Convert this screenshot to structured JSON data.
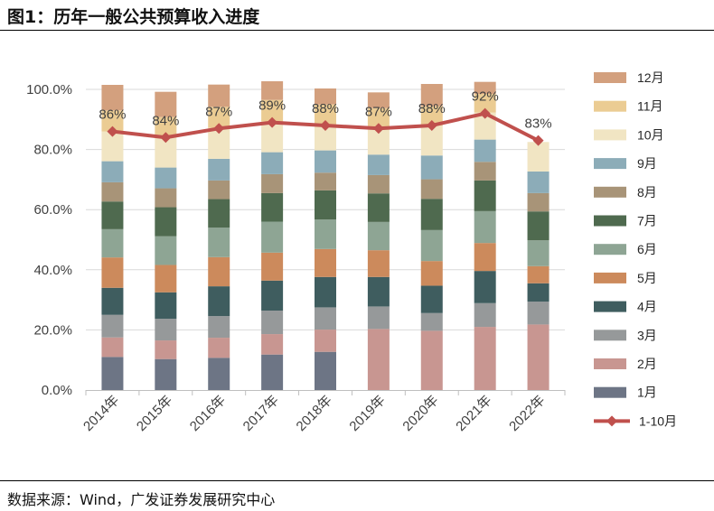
{
  "header": {
    "title": "图1：历年一般公共预算收入进度"
  },
  "footer": {
    "source": "数据来源：Wind，广发证券发展研究中心"
  },
  "chart_data": {
    "type": "bar",
    "stacked": true,
    "title": "历年一般公共预算收入进度",
    "categories": [
      "2014年",
      "2015年",
      "2016年",
      "2017年",
      "2018年",
      "2019年",
      "2020年",
      "2021年",
      "2022年"
    ],
    "ylim": [
      0,
      100
    ],
    "yticks": [
      0,
      20,
      40,
      60,
      80,
      100
    ],
    "ytick_labels": [
      "0.0%",
      "20.0%",
      "40.0%",
      "60.0%",
      "80.0%",
      "100.0%"
    ],
    "series": [
      {
        "name": "1月",
        "color": "#6d7585",
        "values": [
          11.0,
          10.3,
          10.7,
          11.8,
          12.7,
          0,
          0,
          0,
          0
        ]
      },
      {
        "name": "2月",
        "color": "#c89691",
        "values": [
          6.5,
          6.2,
          6.7,
          6.8,
          7.4,
          20.3,
          19.7,
          21.0,
          21.8
        ]
      },
      {
        "name": "3月",
        "color": "#96999a",
        "values": [
          7.5,
          7.2,
          7.2,
          7.8,
          7.4,
          7.5,
          5.9,
          7.9,
          7.6
        ]
      },
      {
        "name": "4月",
        "color": "#3f5d5f",
        "values": [
          9.0,
          8.8,
          9.9,
          10.0,
          10.1,
          9.8,
          9.1,
          10.7,
          6.1
        ]
      },
      {
        "name": "5月",
        "color": "#cc8a5c",
        "values": [
          10.1,
          9.1,
          9.7,
          9.3,
          9.3,
          8.9,
          8.2,
          9.3,
          5.7
        ]
      },
      {
        "name": "6月",
        "color": "#8ea594",
        "values": [
          9.4,
          9.6,
          9.8,
          10.3,
          9.8,
          9.4,
          10.3,
          10.6,
          8.6
        ]
      },
      {
        "name": "7月",
        "color": "#4f6a4f",
        "values": [
          9.2,
          9.6,
          9.5,
          9.5,
          9.7,
          9.5,
          10.4,
          10.2,
          9.6
        ]
      },
      {
        "name": "8月",
        "color": "#a89478",
        "values": [
          6.4,
          6.3,
          6.2,
          6.3,
          5.9,
          6.1,
          6.5,
          6.2,
          6.1
        ]
      },
      {
        "name": "9月",
        "color": "#8cacb8",
        "values": [
          7.0,
          6.9,
          7.2,
          7.3,
          7.4,
          6.8,
          7.9,
          7.4,
          7.2
        ]
      },
      {
        "name": "10月",
        "color": "#f1e5c3",
        "values": [
          9.9,
          10.0,
          10.3,
          10.2,
          8.3,
          9.2,
          9.9,
          9.0,
          9.8
        ]
      },
      {
        "name": "11月",
        "color": "#ebcc93",
        "values": [
          7.0,
          6.8,
          7.0,
          7.2,
          7.0,
          6.3,
          6.5,
          6.2,
          0
        ]
      },
      {
        "name": "12月",
        "color": "#d3a07e",
        "values": [
          8.5,
          8.4,
          7.4,
          6.2,
          5.3,
          5.2,
          7.4,
          4.0,
          0
        ]
      }
    ],
    "line_series": {
      "name": "1-10月",
      "color": "#c0504d",
      "values": [
        86,
        84,
        87,
        89,
        88,
        87,
        88,
        92,
        83
      ],
      "labels": [
        "86%",
        "84%",
        "87%",
        "89%",
        "88%",
        "87%",
        "88%",
        "92%",
        "83%"
      ]
    },
    "legend_order": [
      "12月",
      "11月",
      "10月",
      "9月",
      "8月",
      "7月",
      "6月",
      "5月",
      "4月",
      "3月",
      "2月",
      "1月",
      "1-10月"
    ],
    "legend_position": "right",
    "grid": true
  }
}
